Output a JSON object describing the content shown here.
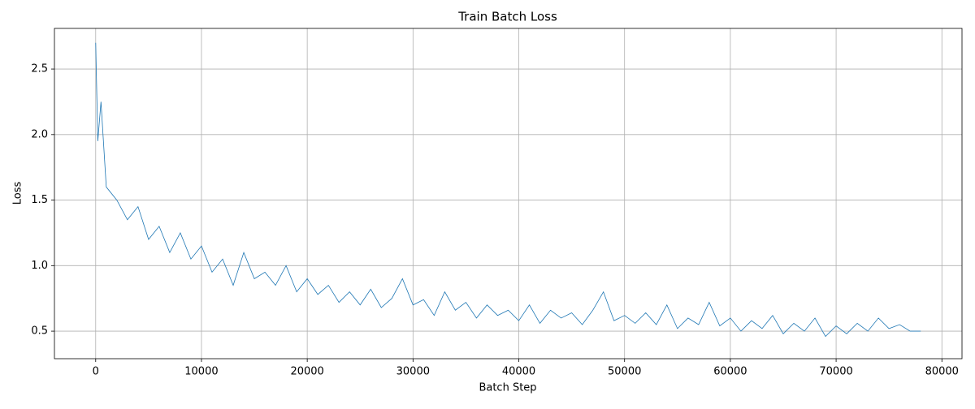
{
  "chart_data": {
    "type": "line",
    "title": "Train Batch Loss",
    "x_label": "Batch Step",
    "y_label": "Loss",
    "x": [
      0,
      200,
      500,
      1000,
      2000,
      3000,
      4000,
      5000,
      6000,
      7000,
      8000,
      9000,
      10000,
      11000,
      12000,
      13000,
      14000,
      15000,
      16000,
      17000,
      18000,
      19000,
      20000,
      21000,
      22000,
      23000,
      24000,
      25000,
      26000,
      27000,
      28000,
      29000,
      30000,
      31000,
      32000,
      33000,
      34000,
      35000,
      36000,
      37000,
      38000,
      39000,
      40000,
      41000,
      42000,
      43000,
      44000,
      45000,
      46000,
      47000,
      48000,
      49000,
      50000,
      51000,
      52000,
      53000,
      54000,
      55000,
      56000,
      57000,
      58000,
      59000,
      60000,
      61000,
      62000,
      63000,
      64000,
      65000,
      66000,
      67000,
      68000,
      69000,
      70000,
      71000,
      72000,
      73000,
      74000,
      75000,
      76000,
      77000,
      78000
    ],
    "series": [
      {
        "name": "Loss",
        "color": "#1f77b4",
        "values": [
          2.7,
          1.95,
          2.25,
          1.6,
          1.5,
          1.35,
          1.45,
          1.2,
          1.3,
          1.1,
          1.25,
          1.05,
          1.15,
          0.95,
          1.05,
          0.85,
          1.1,
          0.9,
          0.95,
          0.85,
          1.0,
          0.8,
          0.9,
          0.78,
          0.85,
          0.72,
          0.8,
          0.7,
          0.82,
          0.68,
          0.75,
          0.9,
          0.7,
          0.74,
          0.62,
          0.8,
          0.66,
          0.72,
          0.6,
          0.7,
          0.62,
          0.66,
          0.58,
          0.7,
          0.56,
          0.66,
          0.6,
          0.64,
          0.55,
          0.66,
          0.8,
          0.58,
          0.62,
          0.56,
          0.64,
          0.55,
          0.7,
          0.52,
          0.6,
          0.55,
          0.72,
          0.54,
          0.6,
          0.5,
          0.58,
          0.52,
          0.62,
          0.48,
          0.56,
          0.5,
          0.6,
          0.46,
          0.54,
          0.48,
          0.56,
          0.5,
          0.6,
          0.52,
          0.55,
          0.5,
          0.5
        ]
      }
    ],
    "xlim": [
      -3900,
      81900
    ],
    "ylim": [
      0.29,
      2.81
    ],
    "xticks": [
      0,
      10000,
      20000,
      30000,
      40000,
      50000,
      60000,
      70000,
      80000
    ],
    "yticks": [
      0.5,
      {
        "value": 1.0,
        "label": "1.0"
      },
      1.5,
      {
        "value": 2.0,
        "label": "2.0"
      },
      2.5
    ],
    "grid": true
  }
}
